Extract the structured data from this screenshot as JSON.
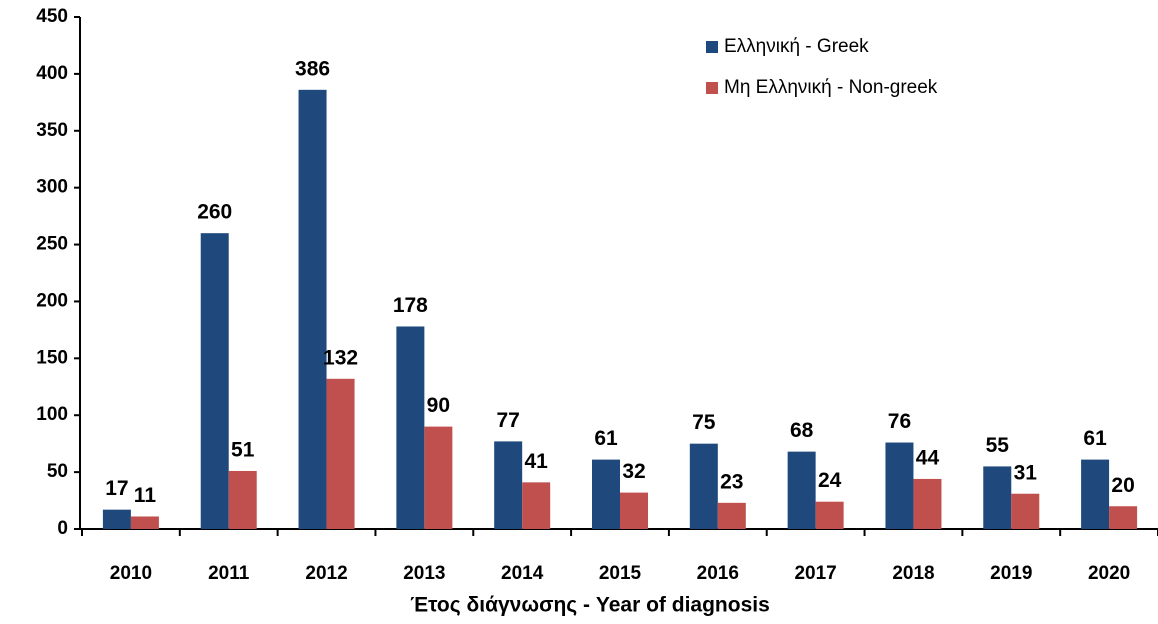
{
  "chart_data": {
    "type": "bar",
    "x_label": "Έτος διάγνωσης - Year of diagnosis",
    "categories": [
      "2010",
      "2011",
      "2012",
      "2013",
      "2014",
      "2015",
      "2016",
      "2017",
      "2018",
      "2019",
      "2020"
    ],
    "series": [
      {
        "name": "Ελληνική - Greek",
        "color": "#1f497d",
        "values": [
          17,
          260,
          386,
          178,
          77,
          61,
          75,
          68,
          76,
          55,
          61
        ]
      },
      {
        "name": "Μη Ελληνική - Non-greek",
        "color": "#c0504d",
        "values": [
          11,
          51,
          132,
          90,
          41,
          32,
          23,
          24,
          44,
          31,
          20
        ]
      }
    ],
    "ylim": [
      0,
      450
    ],
    "yticks": [
      0,
      50,
      100,
      150,
      200,
      250,
      300,
      350,
      400,
      450
    ],
    "grid": false,
    "legend": "top-right"
  }
}
